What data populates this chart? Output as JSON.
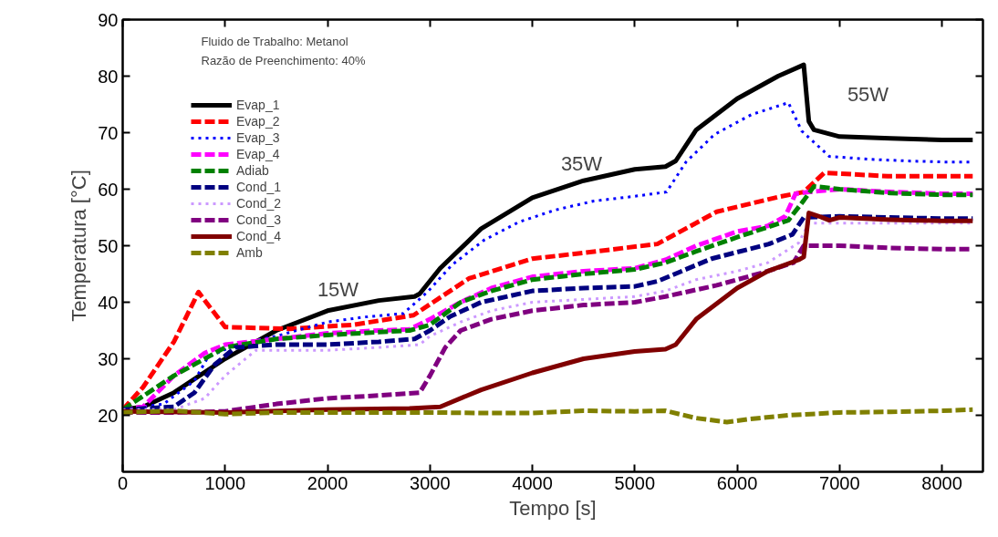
{
  "chart_data": {
    "type": "line",
    "xlabel": "Tempo [s]",
    "ylabel": "Temperatura [°C]",
    "xlim": [
      0,
      8400
    ],
    "ylim": [
      10,
      90
    ],
    "xticks": [
      0,
      1000,
      2000,
      3000,
      4000,
      5000,
      6000,
      7000,
      8000
    ],
    "yticks": [
      20,
      30,
      40,
      50,
      60,
      70,
      80,
      90
    ],
    "grid": false,
    "legend": "top left",
    "marker": "none",
    "annotations": [
      "Fluido de Trabalho: Metanol",
      "Razão de Preenchimento: 40%",
      "15W",
      "35W",
      "55W"
    ],
    "series": [
      {
        "name": "Evap_1",
        "color": "#000000",
        "line_style": "solid",
        "x": [
          0,
          200,
          500,
          1000,
          1500,
          2000,
          2500,
          2850,
          2900,
          3100,
          3500,
          4000,
          4500,
          5000,
          5300,
          5400,
          5600,
          6000,
          6400,
          6650,
          6700,
          6750,
          7000,
          7500,
          8000,
          8300
        ],
        "values": [
          21,
          21.5,
          24,
          30,
          35,
          38.5,
          40.3,
          41,
          41.5,
          46,
          53,
          58.5,
          61.5,
          63.5,
          64,
          65,
          70.5,
          76,
          80,
          82,
          72,
          70.5,
          69.3,
          69,
          68.7,
          68.7
        ]
      },
      {
        "name": "Evap_2",
        "color": "#ff0000",
        "line_style": "dashed",
        "x": [
          0,
          200,
          500,
          740,
          1000,
          1630,
          2250,
          2840,
          3380,
          4000,
          4620,
          5220,
          5800,
          6420,
          6650,
          6850,
          7470,
          8100,
          8300
        ],
        "values": [
          21,
          25,
          33,
          41.8,
          35.6,
          35.3,
          36,
          37.7,
          44.2,
          47.7,
          49,
          50.3,
          56,
          58.7,
          59.5,
          62.9,
          62.3,
          62.3,
          62.3
        ]
      },
      {
        "name": "Evap_3",
        "color": "#0000ff",
        "line_style": "dotted",
        "x": [
          0,
          400,
          700,
          830,
          1100,
          1500,
          2000,
          2370,
          2740,
          2975,
          3215,
          3530,
          3870,
          4220,
          4600,
          4980,
          5310,
          5500,
          5780,
          6140,
          6500,
          6630,
          6900,
          7290,
          7650,
          8030,
          8300
        ],
        "values": [
          21,
          22,
          26.1,
          30.2,
          32.5,
          34,
          36.5,
          37.4,
          38,
          41.8,
          46.6,
          51,
          54.2,
          56.3,
          57.9,
          58.7,
          59.5,
          64.8,
          69.7,
          73.2,
          75.3,
          70.3,
          65.8,
          65.3,
          65,
          64.8,
          64.8
        ]
      },
      {
        "name": "Evap_4",
        "color": "#ff00ff",
        "line_style": "dashed",
        "x": [
          0,
          200,
          500,
          800,
          1000,
          1500,
          2000,
          2500,
          2800,
          3000,
          3300,
          3600,
          4000,
          4500,
          5000,
          5300,
          5600,
          6000,
          6300,
          6470,
          6570,
          6700,
          7000,
          7500,
          8000,
          8300
        ],
        "values": [
          21,
          21.5,
          27,
          31,
          32.5,
          33.5,
          34.5,
          35,
          35.2,
          37,
          40,
          42.5,
          44.5,
          45.5,
          46,
          47.5,
          50,
          52.5,
          53.5,
          55.2,
          59.2,
          59.5,
          60,
          59.5,
          59.2,
          59.2
        ]
      },
      {
        "name": "Adiab",
        "color": "#008000",
        "line_style": "dashed",
        "x": [
          0,
          500,
          1000,
          1500,
          2000,
          2500,
          2800,
          3000,
          3300,
          3600,
          4000,
          4500,
          5000,
          5300,
          5600,
          6000,
          6300,
          6500,
          6650,
          6750,
          7000,
          7500,
          8000,
          8300
        ],
        "values": [
          21,
          27,
          32,
          33.5,
          34.2,
          34.7,
          35,
          36,
          40,
          42,
          44,
          45,
          45.8,
          47,
          49,
          51.5,
          53.3,
          54.5,
          58,
          60.5,
          60,
          59.3,
          59,
          59
        ]
      },
      {
        "name": "Cond_1",
        "color": "#000080",
        "line_style": "dashed",
        "x": [
          0,
          500,
          700,
          900,
          1100,
          1500,
          2000,
          2500,
          2850,
          3000,
          3200,
          3500,
          4000,
          4500,
          5000,
          5220,
          5750,
          6310,
          6540,
          6650,
          7000,
          7500,
          8000,
          8300
        ],
        "values": [
          21,
          21.5,
          24,
          29,
          32,
          32.5,
          32.5,
          33,
          33.5,
          35,
          37.5,
          40,
          42,
          42.5,
          42.8,
          43.7,
          47.7,
          50.3,
          52,
          55,
          55.2,
          55,
          54.8,
          54.8
        ]
      },
      {
        "name": "Cond_2",
        "color": "#cc99ff",
        "line_style": "dotted",
        "x": [
          0,
          500,
          800,
          1000,
          1300,
          2000,
          2500,
          2900,
          3000,
          3300,
          3600,
          4000,
          4500,
          5000,
          5300,
          5600,
          6000,
          6300,
          6600,
          6700,
          7000,
          7500,
          8000,
          8300
        ],
        "values": [
          21,
          21,
          23,
          27,
          31.5,
          31.5,
          32,
          32.5,
          34,
          36.5,
          38.5,
          40,
          40.5,
          41,
          42,
          44,
          45.5,
          47,
          50.5,
          54,
          54,
          54,
          54,
          54
        ]
      },
      {
        "name": "Cond_3",
        "color": "#800080",
        "line_style": "dashed",
        "x": [
          0,
          500,
          1000,
          1500,
          2000,
          2500,
          2900,
          3000,
          3150,
          3300,
          3600,
          4000,
          4500,
          5000,
          5300,
          5800,
          6300,
          6550,
          6650,
          7000,
          7500,
          8000,
          8300
        ],
        "values": [
          20.5,
          20.5,
          20.7,
          22,
          23,
          23.5,
          24,
          27,
          32,
          35,
          37,
          38.5,
          39.5,
          40,
          41,
          43,
          45.5,
          47,
          50,
          50,
          49.6,
          49.4,
          49.4
        ]
      },
      {
        "name": "Cond_4",
        "color": "#800000",
        "line_style": "solid",
        "x": [
          0,
          1000,
          2000,
          2800,
          3100,
          3500,
          4000,
          4500,
          5000,
          5300,
          5400,
          5600,
          6000,
          6300,
          6600,
          6650,
          6700,
          6800,
          6900,
          7000,
          7500,
          8000,
          8300
        ],
        "values": [
          20.7,
          20.5,
          21,
          21.2,
          21.5,
          24.5,
          27.5,
          30,
          31.3,
          31.7,
          32.5,
          37,
          42.5,
          45.5,
          47.5,
          48,
          55.8,
          55.2,
          54.5,
          55,
          54.6,
          54.4,
          54.4
        ]
      },
      {
        "name": "Amb",
        "color": "#808000",
        "line_style": "dashed",
        "x": [
          0,
          500,
          1000,
          1500,
          2000,
          2500,
          3000,
          3500,
          4000,
          4500,
          5000,
          5300,
          5600,
          5900,
          6100,
          6500,
          7000,
          7500,
          8000,
          8300
        ],
        "values": [
          20.5,
          20.8,
          20.2,
          20.5,
          20.5,
          20.5,
          20.5,
          20.4,
          20.4,
          20.8,
          20.7,
          20.8,
          19.5,
          18.8,
          19.3,
          20,
          20.5,
          20.6,
          20.8,
          21
        ]
      }
    ]
  }
}
